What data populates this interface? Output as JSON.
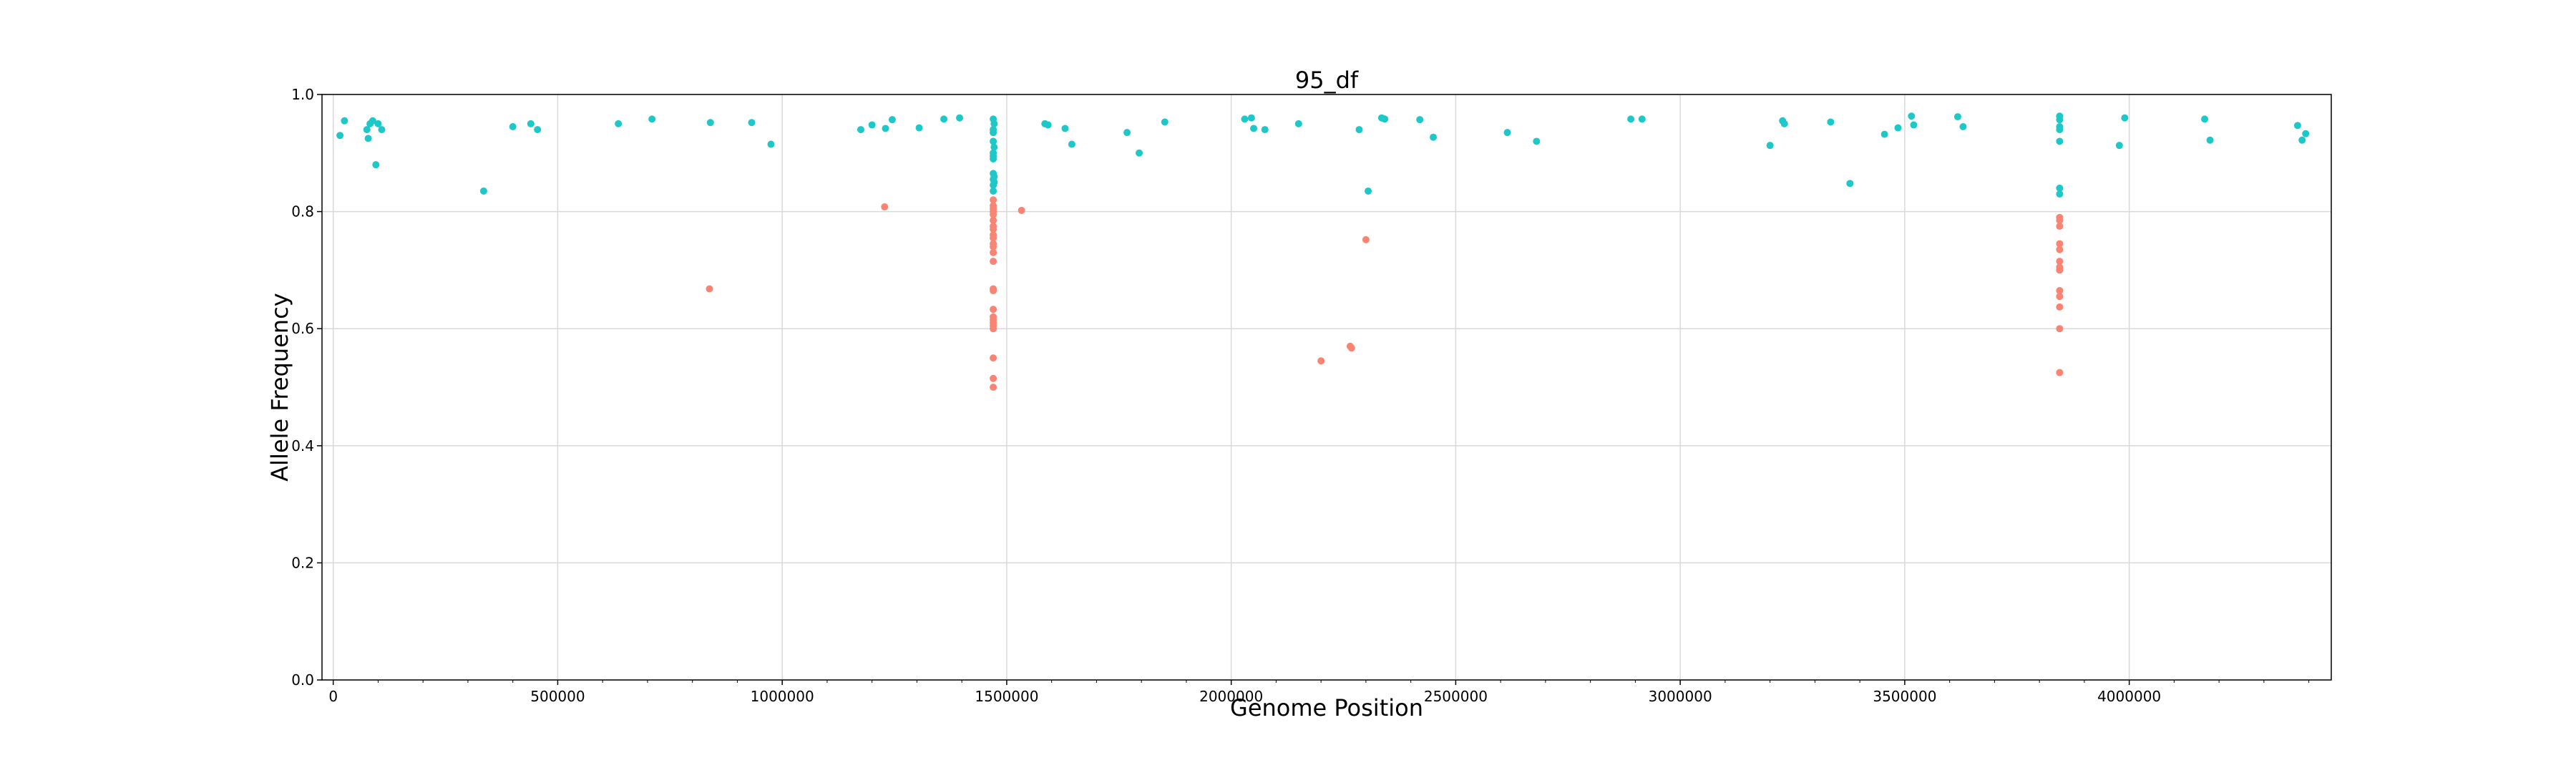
{
  "chart_data": {
    "type": "scatter",
    "title": "95_df",
    "xlabel": "Genome Position",
    "ylabel": "Allele Frequency",
    "xlim": [
      -25000,
      4450000
    ],
    "ylim": [
      0.0,
      1.0
    ],
    "x_ticks": [
      0,
      500000,
      1000000,
      1500000,
      2000000,
      2500000,
      3000000,
      3500000,
      4000000
    ],
    "x_tick_labels": [
      "0",
      "500000",
      "1000000",
      "1500000",
      "2000000",
      "2500000",
      "3000000",
      "3500000",
      "4000000"
    ],
    "y_ticks": [
      0.0,
      0.2,
      0.4,
      0.6,
      0.8,
      1.0
    ],
    "y_tick_labels": [
      "0.0",
      "0.2",
      "0.4",
      "0.6",
      "0.8",
      "1.0"
    ],
    "grid": true,
    "legend": "none",
    "series": [
      {
        "color": "#1fc8c8",
        "points": [
          [
            15000,
            0.93
          ],
          [
            25000,
            0.955
          ],
          [
            75000,
            0.94
          ],
          [
            78000,
            0.925
          ],
          [
            82000,
            0.95
          ],
          [
            88000,
            0.955
          ],
          [
            95000,
            0.88
          ],
          [
            100000,
            0.95
          ],
          [
            108000,
            0.94
          ],
          [
            335000,
            0.835
          ],
          [
            400000,
            0.945
          ],
          [
            440000,
            0.95
          ],
          [
            455000,
            0.94
          ],
          [
            635000,
            0.95
          ],
          [
            710000,
            0.958
          ],
          [
            840000,
            0.952
          ],
          [
            932000,
            0.952
          ],
          [
            975000,
            0.915
          ],
          [
            1175000,
            0.94
          ],
          [
            1200000,
            0.948
          ],
          [
            1230000,
            0.942
          ],
          [
            1245000,
            0.957
          ],
          [
            1305000,
            0.943
          ],
          [
            1360000,
            0.958
          ],
          [
            1395000,
            0.96
          ],
          [
            1470000,
            0.958
          ],
          [
            1470000,
            0.94
          ],
          [
            1470000,
            0.935
          ],
          [
            1470000,
            0.92
          ],
          [
            1470000,
            0.9
          ],
          [
            1470000,
            0.895
          ],
          [
            1470000,
            0.89
          ],
          [
            1470000,
            0.865
          ],
          [
            1470000,
            0.855
          ],
          [
            1470000,
            0.845
          ],
          [
            1470000,
            0.835
          ],
          [
            1472000,
            0.95
          ],
          [
            1472000,
            0.91
          ],
          [
            1472000,
            0.86
          ],
          [
            1472000,
            0.85
          ],
          [
            1585000,
            0.95
          ],
          [
            1592000,
            0.948
          ],
          [
            1630000,
            0.942
          ],
          [
            1645000,
            0.915
          ],
          [
            1768000,
            0.935
          ],
          [
            1795000,
            0.9
          ],
          [
            1852000,
            0.953
          ],
          [
            2030000,
            0.958
          ],
          [
            2045000,
            0.96
          ],
          [
            2050000,
            0.942
          ],
          [
            2075000,
            0.94
          ],
          [
            2150000,
            0.95
          ],
          [
            2285000,
            0.94
          ],
          [
            2305000,
            0.835
          ],
          [
            2335000,
            0.96
          ],
          [
            2342000,
            0.958
          ],
          [
            2420000,
            0.957
          ],
          [
            2450000,
            0.927
          ],
          [
            2615000,
            0.935
          ],
          [
            2680000,
            0.92
          ],
          [
            2890000,
            0.958
          ],
          [
            2915000,
            0.958
          ],
          [
            3200000,
            0.913
          ],
          [
            3228000,
            0.955
          ],
          [
            3232000,
            0.95
          ],
          [
            3335000,
            0.953
          ],
          [
            3378000,
            0.848
          ],
          [
            3455000,
            0.932
          ],
          [
            3485000,
            0.943
          ],
          [
            3515000,
            0.963
          ],
          [
            3520000,
            0.948
          ],
          [
            3618000,
            0.962
          ],
          [
            3630000,
            0.945
          ],
          [
            3845000,
            0.963
          ],
          [
            3845000,
            0.957
          ],
          [
            3845000,
            0.945
          ],
          [
            3845000,
            0.92
          ],
          [
            3845000,
            0.94
          ],
          [
            3845000,
            0.84
          ],
          [
            3845000,
            0.83
          ],
          [
            3978000,
            0.913
          ],
          [
            3990000,
            0.96
          ],
          [
            4168000,
            0.958
          ],
          [
            4180000,
            0.922
          ],
          [
            4375000,
            0.947
          ],
          [
            4385000,
            0.922
          ],
          [
            4393000,
            0.933
          ]
        ]
      },
      {
        "color": "#f98473",
        "points": [
          [
            838000,
            0.668
          ],
          [
            1228000,
            0.808
          ],
          [
            1470000,
            0.82
          ],
          [
            1470000,
            0.81
          ],
          [
            1470000,
            0.805
          ],
          [
            1470000,
            0.8
          ],
          [
            1470000,
            0.795
          ],
          [
            1470000,
            0.785
          ],
          [
            1470000,
            0.775
          ],
          [
            1470000,
            0.77
          ],
          [
            1470000,
            0.76
          ],
          [
            1470000,
            0.755
          ],
          [
            1470000,
            0.745
          ],
          [
            1470000,
            0.74
          ],
          [
            1470000,
            0.73
          ],
          [
            1470000,
            0.715
          ],
          [
            1470000,
            0.668
          ],
          [
            1470000,
            0.665
          ],
          [
            1470000,
            0.633
          ],
          [
            1470000,
            0.62
          ],
          [
            1470000,
            0.615
          ],
          [
            1470000,
            0.61
          ],
          [
            1470000,
            0.605
          ],
          [
            1470000,
            0.6
          ],
          [
            1470000,
            0.55
          ],
          [
            1470000,
            0.515
          ],
          [
            1470000,
            0.5
          ],
          [
            1533000,
            0.802
          ],
          [
            2200000,
            0.545
          ],
          [
            2265000,
            0.57
          ],
          [
            2268000,
            0.567
          ],
          [
            2300000,
            0.752
          ],
          [
            3845000,
            0.79
          ],
          [
            3845000,
            0.785
          ],
          [
            3845000,
            0.775
          ],
          [
            3845000,
            0.745
          ],
          [
            3845000,
            0.735
          ],
          [
            3845000,
            0.715
          ],
          [
            3845000,
            0.705
          ],
          [
            3845000,
            0.7
          ],
          [
            3845000,
            0.665
          ],
          [
            3845000,
            0.655
          ],
          [
            3845000,
            0.637
          ],
          [
            3845000,
            0.6
          ],
          [
            3845000,
            0.525
          ]
        ]
      }
    ]
  }
}
